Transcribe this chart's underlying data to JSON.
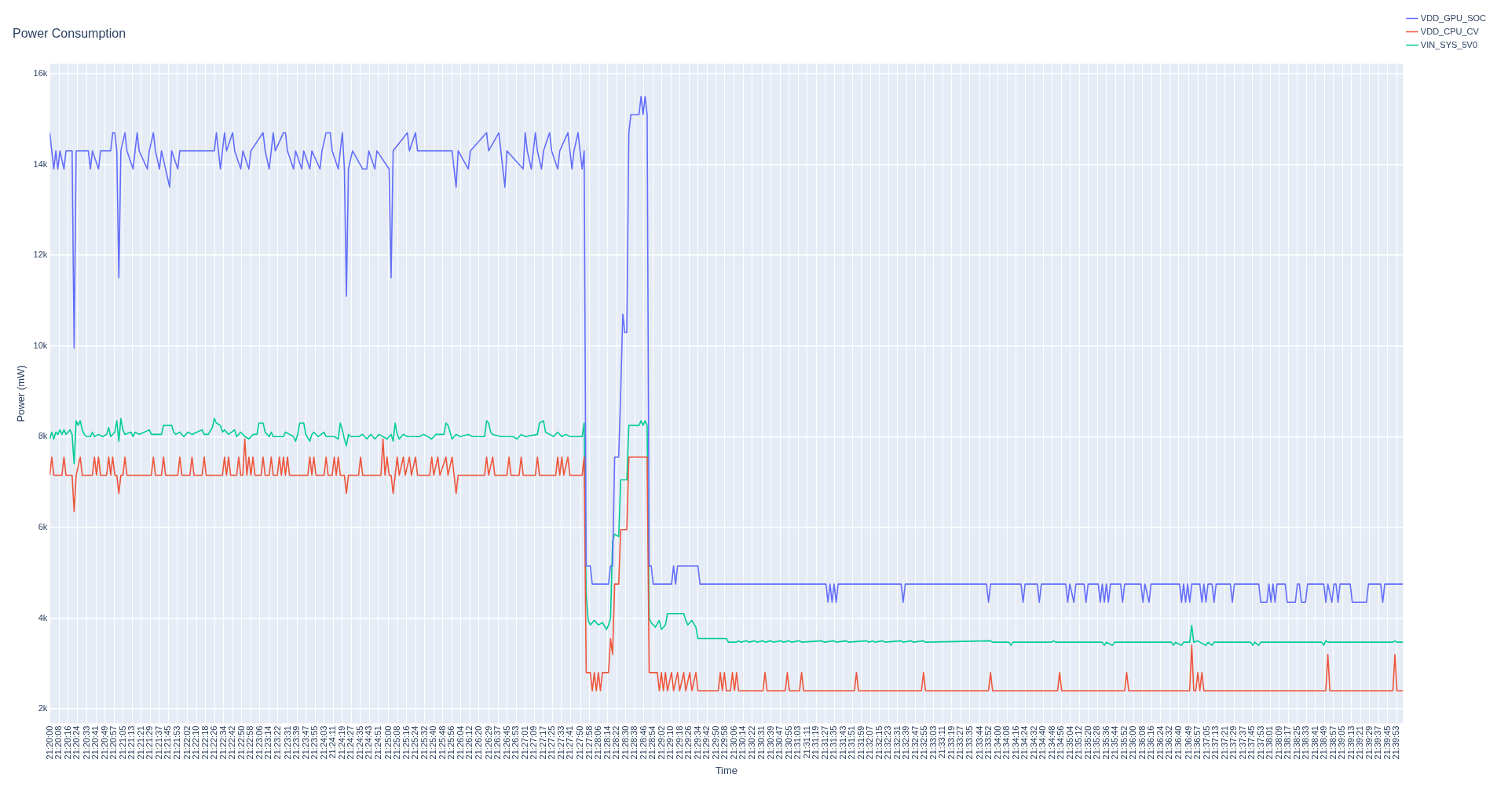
{
  "chart_data": {
    "type": "line",
    "title": "Power Consumption",
    "xlabel": "Time",
    "ylabel": "Power (mW)",
    "grid": true,
    "legend": "top right",
    "xlim": [
      21.3333,
      21.6663
    ],
    "ylim": [
      1680,
      16220
    ],
    "yticks": [
      {
        "value": 2000,
        "label": "2k"
      },
      {
        "value": 4000,
        "label": "4k"
      },
      {
        "value": 6000,
        "label": "6k"
      },
      {
        "value": 8000,
        "label": "8k"
      },
      {
        "value": 10000,
        "label": "10k"
      },
      {
        "value": 12000,
        "label": "12k"
      },
      {
        "value": 14000,
        "label": "14k"
      },
      {
        "value": 16000,
        "label": "16k"
      }
    ],
    "xticks": [
      {
        "value": 21.33333,
        "label": "21:20:00"
      },
      {
        "value": 21.33556,
        "label": "21:20:08"
      },
      {
        "value": 21.33778,
        "label": "21:20:16"
      },
      {
        "value": 21.34,
        "label": "21:20:24"
      },
      {
        "value": 21.3425,
        "label": "21:20:33"
      },
      {
        "value": 21.34472,
        "label": "21:20:41"
      },
      {
        "value": 21.34694,
        "label": "21:20:49"
      },
      {
        "value": 21.34917,
        "label": "21:20:57"
      },
      {
        "value": 21.35139,
        "label": "21:21:05"
      },
      {
        "value": 21.35361,
        "label": "21:21:13"
      },
      {
        "value": 21.35583,
        "label": "21:21:21"
      },
      {
        "value": 21.35806,
        "label": "21:21:29"
      },
      {
        "value": 21.36028,
        "label": "21:21:37"
      },
      {
        "value": 21.3625,
        "label": "21:21:45"
      },
      {
        "value": 21.36472,
        "label": "21:21:53"
      },
      {
        "value": 21.36722,
        "label": "21:22:02"
      },
      {
        "value": 21.36944,
        "label": "21:22:10"
      },
      {
        "value": 21.37167,
        "label": "21:22:18"
      },
      {
        "value": 21.37389,
        "label": "21:22:26"
      },
      {
        "value": 21.37611,
        "label": "21:22:34"
      },
      {
        "value": 21.37833,
        "label": "21:22:42"
      },
      {
        "value": 21.38056,
        "label": "21:22:50"
      },
      {
        "value": 21.38278,
        "label": "21:22:58"
      },
      {
        "value": 21.385,
        "label": "21:23:06"
      },
      {
        "value": 21.38722,
        "label": "21:23:14"
      },
      {
        "value": 21.38944,
        "label": "21:23:22"
      },
      {
        "value": 21.39194,
        "label": "21:23:31"
      },
      {
        "value": 21.39417,
        "label": "21:23:39"
      },
      {
        "value": 21.39639,
        "label": "21:23:47"
      },
      {
        "value": 21.39861,
        "label": "21:23:55"
      },
      {
        "value": 21.40083,
        "label": "21:24:03"
      },
      {
        "value": 21.40306,
        "label": "21:24:11"
      },
      {
        "value": 21.40528,
        "label": "21:24:19"
      },
      {
        "value": 21.4075,
        "label": "21:24:27"
      },
      {
        "value": 21.40972,
        "label": "21:24:35"
      },
      {
        "value": 21.41194,
        "label": "21:24:43"
      },
      {
        "value": 21.41417,
        "label": "21:24:51"
      },
      {
        "value": 21.41667,
        "label": "21:25:00"
      },
      {
        "value": 21.41889,
        "label": "21:25:08"
      },
      {
        "value": 21.42111,
        "label": "21:25:16"
      },
      {
        "value": 21.42333,
        "label": "21:25:24"
      },
      {
        "value": 21.42556,
        "label": "21:25:32"
      },
      {
        "value": 21.42778,
        "label": "21:25:40"
      },
      {
        "value": 21.43,
        "label": "21:25:48"
      },
      {
        "value": 21.43222,
        "label": "21:25:56"
      },
      {
        "value": 21.43444,
        "label": "21:26:04"
      },
      {
        "value": 21.43667,
        "label": "21:26:12"
      },
      {
        "value": 21.43889,
        "label": "21:26:20"
      },
      {
        "value": 21.44139,
        "label": "21:26:29"
      },
      {
        "value": 21.44361,
        "label": "21:26:37"
      },
      {
        "value": 21.44583,
        "label": "21:26:45"
      },
      {
        "value": 21.44806,
        "label": "21:26:53"
      },
      {
        "value": 21.45028,
        "label": "21:27:01"
      },
      {
        "value": 21.4525,
        "label": "21:27:09"
      },
      {
        "value": 21.45472,
        "label": "21:27:17"
      },
      {
        "value": 21.45694,
        "label": "21:27:25"
      },
      {
        "value": 21.45917,
        "label": "21:27:33"
      },
      {
        "value": 21.46139,
        "label": "21:27:41"
      },
      {
        "value": 21.46389,
        "label": "21:27:50"
      },
      {
        "value": 21.46611,
        "label": "21:27:58"
      },
      {
        "value": 21.46833,
        "label": "21:28:06"
      },
      {
        "value": 21.47056,
        "label": "21:28:14"
      },
      {
        "value": 21.47278,
        "label": "21:28:22"
      },
      {
        "value": 21.475,
        "label": "21:28:30"
      },
      {
        "value": 21.47722,
        "label": "21:28:38"
      },
      {
        "value": 21.47944,
        "label": "21:28:46"
      },
      {
        "value": 21.48167,
        "label": "21:28:54"
      },
      {
        "value": 21.48389,
        "label": "21:29:02"
      },
      {
        "value": 21.48611,
        "label": "21:29:10"
      },
      {
        "value": 21.48833,
        "label": "21:29:18"
      },
      {
        "value": 21.49056,
        "label": "21:29:26"
      },
      {
        "value": 21.49278,
        "label": "21:29:34"
      },
      {
        "value": 21.495,
        "label": "21:29:42"
      },
      {
        "value": 21.49722,
        "label": "21:29:50"
      },
      {
        "value": 21.49944,
        "label": "21:29:58"
      },
      {
        "value": 21.50167,
        "label": "21:30:06"
      },
      {
        "value": 21.50389,
        "label": "21:30:14"
      },
      {
        "value": 21.50611,
        "label": "21:30:22"
      },
      {
        "value": 21.50861,
        "label": "21:30:31"
      },
      {
        "value": 21.51083,
        "label": "21:30:39"
      },
      {
        "value": 21.51306,
        "label": "21:30:47"
      },
      {
        "value": 21.51528,
        "label": "21:30:55"
      },
      {
        "value": 21.5175,
        "label": "21:31:03"
      },
      {
        "value": 21.51972,
        "label": "21:31:11"
      },
      {
        "value": 21.52194,
        "label": "21:31:19"
      },
      {
        "value": 21.52417,
        "label": "21:31:27"
      },
      {
        "value": 21.52639,
        "label": "21:31:35"
      },
      {
        "value": 21.52861,
        "label": "21:31:43"
      },
      {
        "value": 21.53083,
        "label": "21:31:51"
      },
      {
        "value": 21.53306,
        "label": "21:31:59"
      },
      {
        "value": 21.53528,
        "label": "21:32:07"
      },
      {
        "value": 21.5375,
        "label": "21:32:15"
      },
      {
        "value": 21.53972,
        "label": "21:32:23"
      },
      {
        "value": 21.54194,
        "label": "21:32:31"
      },
      {
        "value": 21.54417,
        "label": "21:32:39"
      },
      {
        "value": 21.54639,
        "label": "21:32:47"
      },
      {
        "value": 21.54861,
        "label": "21:32:55"
      },
      {
        "value": 21.55083,
        "label": "21:33:03"
      },
      {
        "value": 21.55306,
        "label": "21:33:11"
      },
      {
        "value": 21.55528,
        "label": "21:33:19"
      },
      {
        "value": 21.5575,
        "label": "21:33:27"
      },
      {
        "value": 21.55972,
        "label": "21:33:35"
      },
      {
        "value": 21.56222,
        "label": "21:33:44"
      },
      {
        "value": 21.56444,
        "label": "21:33:52"
      },
      {
        "value": 21.56667,
        "label": "21:34:00"
      },
      {
        "value": 21.56889,
        "label": "21:34:08"
      },
      {
        "value": 21.57111,
        "label": "21:34:16"
      },
      {
        "value": 21.57333,
        "label": "21:34:24"
      },
      {
        "value": 21.57556,
        "label": "21:34:32"
      },
      {
        "value": 21.57778,
        "label": "21:34:40"
      },
      {
        "value": 21.58,
        "label": "21:34:48"
      },
      {
        "value": 21.58222,
        "label": "21:34:56"
      },
      {
        "value": 21.58444,
        "label": "21:35:04"
      },
      {
        "value": 21.58667,
        "label": "21:35:12"
      },
      {
        "value": 21.58889,
        "label": "21:35:20"
      },
      {
        "value": 21.59111,
        "label": "21:35:28"
      },
      {
        "value": 21.59333,
        "label": "21:35:36"
      },
      {
        "value": 21.59556,
        "label": "21:35:44"
      },
      {
        "value": 21.59778,
        "label": "21:35:52"
      },
      {
        "value": 21.6,
        "label": "21:36:00"
      },
      {
        "value": 21.60222,
        "label": "21:36:08"
      },
      {
        "value": 21.60444,
        "label": "21:36:16"
      },
      {
        "value": 21.60667,
        "label": "21:36:24"
      },
      {
        "value": 21.60889,
        "label": "21:36:32"
      },
      {
        "value": 21.61111,
        "label": "21:36:40"
      },
      {
        "value": 21.61361,
        "label": "21:36:49"
      },
      {
        "value": 21.61583,
        "label": "21:36:57"
      },
      {
        "value": 21.61806,
        "label": "21:37:05"
      },
      {
        "value": 21.62028,
        "label": "21:37:13"
      },
      {
        "value": 21.6225,
        "label": "21:37:21"
      },
      {
        "value": 21.62472,
        "label": "21:37:29"
      },
      {
        "value": 21.62694,
        "label": "21:37:37"
      },
      {
        "value": 21.62917,
        "label": "21:37:45"
      },
      {
        "value": 21.63139,
        "label": "21:37:53"
      },
      {
        "value": 21.63361,
        "label": "21:38:01"
      },
      {
        "value": 21.63583,
        "label": "21:38:09"
      },
      {
        "value": 21.63806,
        "label": "21:38:17"
      },
      {
        "value": 21.64028,
        "label": "21:38:25"
      },
      {
        "value": 21.6425,
        "label": "21:38:33"
      },
      {
        "value": 21.64472,
        "label": "21:38:41"
      },
      {
        "value": 21.64694,
        "label": "21:38:49"
      },
      {
        "value": 21.64917,
        "label": "21:38:57"
      },
      {
        "value": 21.65139,
        "label": "21:39:05"
      },
      {
        "value": 21.65361,
        "label": "21:39:13"
      },
      {
        "value": 21.65583,
        "label": "21:39:21"
      },
      {
        "value": 21.65806,
        "label": "21:39:29"
      },
      {
        "value": 21.66028,
        "label": "21:39:37"
      },
      {
        "value": 21.6625,
        "label": "21:39:45"
      },
      {
        "value": 21.66472,
        "label": "21:39:53"
      }
    ],
    "series": [
      {
        "name": "VDD_GPU_SOC",
        "color": "#636efa",
        "x": [
          21.3333,
          21.3338,
          21.3343,
          21.3348,
          21.3353,
          21.3358,
          21.3368,
          21.3373,
          21.3388,
          21.3393,
          21.3398,
          21.3428,
          21.3433,
          21.3438,
          21.3453,
          21.3458,
          21.3483,
          21.3488,
          21.3493,
          21.3498,
          21.3503,
          21.3508,
          21.3518,
          21.3523,
          21.3538,
          21.3543,
          21.3548,
          21.3553,
          21.3573,
          21.3578,
          21.3588,
          21.3593,
          21.3603,
          21.3608,
          21.3628,
          21.3633,
          21.3648,
          21.3653,
          21.3738,
          21.3743,
          21.3748,
          21.3753,
          21.3758,
          21.3763,
          21.3768,
          21.3783,
          21.3788,
          21.3803,
          21.3808,
          21.3823,
          21.3828,
          21.3858,
          21.3863,
          21.3873,
          21.3878,
          21.3883,
          21.3888,
          21.3908,
          21.3913,
          21.3918,
          21.3933,
          21.3938,
          21.3953,
          21.3958,
          21.3973,
          21.3978,
          21.3998,
          21.4003,
          21.4013,
          21.4023,
          21.4028,
          21.4043,
          21.4048,
          21.4053,
          21.4058,
          21.4063,
          21.4068,
          21.4078,
          21.4103,
          21.4113,
          21.4118,
          21.4133,
          21.4138,
          21.4168,
          21.4173,
          21.4178,
          21.4213,
          21.4218,
          21.4233,
          21.4238,
          21.4323,
          21.4328,
          21.4333,
          21.4338,
          21.4363,
          21.4368,
          21.4408,
          21.4413,
          21.4438,
          21.4443,
          21.4453,
          21.4458,
          21.4498,
          21.4503,
          21.4508,
          21.4518,
          21.4523,
          21.4528,
          21.4533,
          21.4543,
          21.4548,
          21.4563,
          21.4568,
          21.4583,
          21.4588,
          21.4608,
          21.4613,
          21.4618,
          21.4623,
          21.4633,
          21.4638,
          21.4643,
          21.4648,
          21.4653,
          21.4663,
          21.4668,
          21.4708,
          21.4713,
          21.4718,
          21.4723,
          21.4733,
          21.4738,
          21.4743,
          21.4748,
          21.4753,
          21.4758,
          21.4763,
          21.4783,
          21.4788,
          21.4793,
          21.4798,
          21.4803,
          21.4808,
          21.4813,
          21.4818,
          21.4863,
          21.4868,
          21.4873,
          21.4878,
          21.4928,
          21.4933,
          21.5243,
          21.5248,
          21.5253,
          21.5258,
          21.5263,
          21.5268,
          21.5273,
          21.5428,
          21.5433,
          21.5438,
          21.5638,
          21.5643,
          21.5648,
          21.5723,
          21.5728,
          21.5733,
          21.5763,
          21.5768,
          21.5773,
          21.5833,
          21.5838,
          21.5843,
          21.5853,
          21.5858,
          21.5878,
          21.5883,
          21.5888,
          21.5913,
          21.5918,
          21.5923,
          21.5928,
          21.5933,
          21.5938,
          21.5943,
          21.5968,
          21.5973,
          21.5978,
          21.6018,
          21.6023,
          21.6028,
          21.6038,
          21.6043,
          21.6113,
          21.6118,
          21.6123,
          21.6128,
          21.6133,
          21.6138,
          21.6143,
          21.6163,
          21.6168,
          21.6173,
          21.6178,
          21.6183,
          21.6193,
          21.6198,
          21.6203,
          21.6238,
          21.6243,
          21.6248,
          21.6308,
          21.6313,
          21.6328,
          21.6333,
          21.6338,
          21.6343,
          21.6348,
          21.6353,
          21.6373,
          21.6378,
          21.6398,
          21.6403,
          21.6408,
          21.6413,
          21.6423,
          21.6428,
          21.6468,
          21.6473,
          21.6478,
          21.6488,
          21.6493,
          21.6498,
          21.6503,
          21.6508,
          21.6533,
          21.6538,
          21.6573,
          21.6578,
          21.6608,
          21.6613,
          21.6618,
          21.6663
        ],
        "values": [
          14700,
          14300,
          13900,
          14300,
          13900,
          14300,
          13900,
          14300,
          14300,
          9950,
          14300,
          14300,
          13900,
          14300,
          13900,
          14300,
          14300,
          14700,
          14700,
          14300,
          11500,
          14300,
          14700,
          14300,
          13900,
          14300,
          14700,
          14300,
          13900,
          14300,
          14700,
          14300,
          13900,
          14300,
          13500,
          14300,
          13900,
          14300,
          14300,
          14700,
          14300,
          13900,
          14300,
          14700,
          14300,
          14700,
          14300,
          13900,
          14300,
          13900,
          14300,
          14700,
          14300,
          13900,
          14300,
          14700,
          14300,
          14700,
          14700,
          14300,
          13900,
          14300,
          13900,
          14300,
          13900,
          14300,
          13900,
          14300,
          14700,
          14700,
          14300,
          13900,
          14300,
          14700,
          13900,
          11100,
          13900,
          14300,
          13900,
          13900,
          14300,
          13900,
          14300,
          13900,
          11500,
          14300,
          14700,
          14300,
          14700,
          14300,
          14300,
          13900,
          13500,
          14300,
          13900,
          14300,
          14700,
          14300,
          14700,
          14300,
          13500,
          14300,
          13900,
          14700,
          14300,
          13900,
          14300,
          14700,
          14300,
          13900,
          14300,
          14700,
          14300,
          13900,
          14300,
          14700,
          14300,
          13900,
          14300,
          14700,
          14300,
          13900,
          14300,
          5150,
          5150,
          4750,
          4750,
          5150,
          5150,
          7550,
          7550,
          9000,
          10700,
          10300,
          10300,
          14700,
          15100,
          15100,
          15500,
          15100,
          15500,
          15100,
          5150,
          5150,
          4750,
          4750,
          5150,
          4750,
          5150,
          5150,
          4750,
          4750,
          4350,
          4750,
          4350,
          4750,
          4350,
          4750,
          4750,
          4350,
          4750,
          4750,
          4350,
          4750,
          4750,
          4350,
          4750,
          4750,
          4350,
          4750,
          4750,
          4350,
          4750,
          4350,
          4750,
          4750,
          4350,
          4750,
          4750,
          4350,
          4750,
          4350,
          4750,
          4350,
          4750,
          4750,
          4350,
          4750,
          4750,
          4350,
          4750,
          4350,
          4750,
          4750,
          4350,
          4750,
          4350,
          4750,
          4350,
          4750,
          4750,
          4350,
          4750,
          4350,
          4750,
          4750,
          4350,
          4750,
          4750,
          4350,
          4750,
          4750,
          4350,
          4350,
          4750,
          4350,
          4750,
          4350,
          4750,
          4750,
          4350,
          4350,
          4750,
          4750,
          4350,
          4350,
          4750,
          4750,
          4350,
          4750,
          4350,
          4750,
          4750,
          4350,
          4750,
          4750,
          4350,
          4350,
          4750,
          4750,
          4350,
          4750,
          4750
        ]
      },
      {
        "name": "VDD_CPU_CV",
        "color": "#ef553b",
        "x": [
          21.3333,
          21.3338,
          21.3343,
          21.3363,
          21.3368,
          21.3373,
          21.3388,
          21.3393,
          21.3398,
          21.3408,
          21.3413,
          21.3438,
          21.3443,
          21.3448,
          21.3453,
          21.3458,
          21.3473,
          21.3478,
          21.3483,
          21.3488,
          21.3493,
          21.3498,
          21.3503,
          21.3508,
          21.3513,
          21.3518,
          21.3523,
          21.3583,
          21.3588,
          21.3593,
          21.3608,
          21.3613,
          21.3618,
          21.3648,
          21.3653,
          21.3658,
          21.3678,
          21.3683,
          21.3688,
          21.3708,
          21.3713,
          21.3718,
          21.3758,
          21.3763,
          21.3768,
          21.3773,
          21.3778,
          21.3793,
          21.3798,
          21.3803,
          21.3808,
          21.3813,
          21.3818,
          21.3823,
          21.3828,
          21.3833,
          21.3838,
          21.3853,
          21.3858,
          21.3863,
          21.3873,
          21.3878,
          21.3883,
          21.3893,
          21.3898,
          21.3903,
          21.3908,
          21.3913,
          21.3918,
          21.3923,
          21.3968,
          21.3973,
          21.3978,
          21.3983,
          21.3988,
          21.4008,
          21.4013,
          21.4018,
          21.4028,
          21.4033,
          21.4038,
          21.4043,
          21.4048,
          21.4058,
          21.4063,
          21.4068,
          21.4093,
          21.4098,
          21.4103,
          21.4148,
          21.4153,
          21.4158,
          21.4163,
          21.4168,
          21.4173,
          21.4178,
          21.4183,
          21.4188,
          21.4193,
          21.4203,
          21.4208,
          21.4218,
          21.4223,
          21.4233,
          21.4238,
          21.4268,
          21.4273,
          21.4278,
          21.4288,
          21.4293,
          21.4308,
          21.4313,
          21.4323,
          21.4328,
          21.4333,
          21.4338,
          21.4403,
          21.4408,
          21.4413,
          21.4423,
          21.4428,
          21.4458,
          21.4463,
          21.4468,
          21.4488,
          21.4493,
          21.4498,
          21.4528,
          21.4533,
          21.4538,
          21.4578,
          21.4583,
          21.4588,
          21.4593,
          21.4598,
          21.4608,
          21.4613,
          21.4643,
          21.4648,
          21.4653,
          21.4663,
          21.4668,
          21.4673,
          21.4678,
          21.4683,
          21.4688,
          21.4693,
          21.4708,
          21.4713,
          21.4718,
          21.4723,
          21.4733,
          21.4738,
          21.4753,
          21.4758,
          21.4803,
          21.4808,
          21.4828,
          21.4833,
          21.4838,
          21.4843,
          21.4848,
          21.4853,
          21.4863,
          21.4868,
          21.4878,
          21.4883,
          21.4893,
          21.4898,
          21.4908,
          21.4913,
          21.4923,
          21.4928,
          21.4978,
          21.4983,
          21.4988,
          21.4993,
          21.4998,
          21.5008,
          21.5013,
          21.5018,
          21.5023,
          21.5028,
          21.5088,
          21.5093,
          21.5098,
          21.5143,
          21.5148,
          21.5153,
          21.5178,
          21.5183,
          21.5188,
          21.5313,
          21.5318,
          21.5323,
          21.5478,
          21.5483,
          21.5488,
          21.5643,
          21.5648,
          21.5653,
          21.5813,
          21.5818,
          21.5823,
          21.5978,
          21.5983,
          21.5988,
          21.6138,
          21.6143,
          21.6148,
          21.6153,
          21.6158,
          21.6163,
          21.6168,
          21.6173,
          21.6473,
          21.6478,
          21.6483,
          21.6638,
          21.6643,
          21.6648,
          21.6663
        ],
        "values": [
          7150,
          7550,
          7150,
          7150,
          7550,
          7150,
          7150,
          6350,
          7150,
          7550,
          7150,
          7150,
          7550,
          7150,
          7550,
          7150,
          7150,
          7550,
          7150,
          7550,
          7150,
          7150,
          6750,
          7150,
          7150,
          7550,
          7150,
          7150,
          7550,
          7150,
          7150,
          7550,
          7150,
          7150,
          7550,
          7150,
          7150,
          7550,
          7150,
          7150,
          7550,
          7150,
          7150,
          7550,
          7150,
          7550,
          7150,
          7150,
          7550,
          7150,
          7150,
          7950,
          7150,
          7550,
          7150,
          7550,
          7150,
          7150,
          7550,
          7150,
          7150,
          7550,
          7150,
          7150,
          7550,
          7150,
          7550,
          7150,
          7550,
          7150,
          7150,
          7550,
          7150,
          7550,
          7150,
          7150,
          7550,
          7150,
          7150,
          7550,
          7150,
          7550,
          7150,
          7150,
          6750,
          7150,
          7150,
          7550,
          7150,
          7150,
          7950,
          7150,
          7550,
          7150,
          7150,
          6750,
          7150,
          7550,
          7150,
          7550,
          7150,
          7550,
          7150,
          7550,
          7150,
          7150,
          7550,
          7150,
          7550,
          7150,
          7550,
          7150,
          7550,
          7150,
          6750,
          7150,
          7150,
          7550,
          7150,
          7550,
          7150,
          7150,
          7550,
          7150,
          7150,
          7550,
          7150,
          7150,
          7550,
          7150,
          7150,
          7550,
          7150,
          7550,
          7150,
          7550,
          7150,
          7150,
          7550,
          2800,
          2800,
          2400,
          2800,
          2400,
          2800,
          2400,
          2800,
          2800,
          3550,
          3200,
          4750,
          4750,
          5950,
          5950,
          7550,
          7550,
          2800,
          2800,
          2400,
          2800,
          2400,
          2800,
          2400,
          2800,
          2400,
          2800,
          2400,
          2800,
          2400,
          2800,
          2400,
          2800,
          2400,
          2400,
          2800,
          2400,
          2800,
          2400,
          2400,
          2800,
          2400,
          2800,
          2400,
          2400,
          2800,
          2400,
          2400,
          2800,
          2400,
          2400,
          2800,
          2400,
          2400,
          2800,
          2400,
          2400,
          2800,
          2400,
          2400,
          2800,
          2400,
          2400,
          2800,
          2400,
          2400,
          2800,
          2400,
          2400,
          3400,
          2400,
          2400,
          2800,
          2400,
          2800,
          2400,
          2400,
          3200,
          2400,
          2400,
          3200,
          2400,
          2400
        ]
      },
      {
        "name": "VIN_SYS_5V0",
        "color": "#00cc96",
        "x": [
          21.3333,
          21.3338,
          21.3343,
          21.3348,
          21.3353,
          21.3358,
          21.3363,
          21.3368,
          21.3373,
          21.3383,
          21.3388,
          21.3393,
          21.3398,
          21.3403,
          21.3408,
          21.3413,
          21.3418,
          21.3423,
          21.3433,
          21.3438,
          21.3443,
          21.3453,
          21.3463,
          21.3473,
          21.3478,
          21.3483,
          21.3493,
          21.3498,
          21.3503,
          21.3508,
          21.3513,
          21.3518,
          21.3533,
          21.3538,
          21.3543,
          21.3553,
          21.3578,
          21.3583,
          21.3608,
          21.3613,
          21.3633,
          21.3638,
          21.3643,
          21.3653,
          21.3663,
          21.3673,
          21.3683,
          21.3708,
          21.3713,
          21.3723,
          21.3733,
          21.3738,
          21.3743,
          21.3753,
          21.3758,
          21.3763,
          21.3773,
          21.3788,
          21.3793,
          21.3803,
          21.3813,
          21.3823,
          21.3833,
          21.3843,
          21.3848,
          21.3858,
          21.3863,
          21.3873,
          21.3878,
          21.3883,
          21.3908,
          21.3913,
          21.3923,
          21.3933,
          21.3938,
          21.3943,
          21.3948,
          21.3958,
          21.3963,
          21.3973,
          21.3978,
          21.3983,
          21.3993,
          21.4008,
          21.4013,
          21.4033,
          21.4043,
          21.4048,
          21.4053,
          21.4058,
          21.4063,
          21.4068,
          21.4073,
          21.4093,
          21.4103,
          21.4113,
          21.4123,
          21.4133,
          21.4143,
          21.4163,
          21.4173,
          21.4178,
          21.4183,
          21.4188,
          21.4193,
          21.4203,
          21.4213,
          21.4243,
          21.4253,
          21.4273,
          21.4283,
          21.4303,
          21.4308,
          21.4313,
          21.4318,
          21.4323,
          21.4333,
          21.4343,
          21.4363,
          21.4373,
          21.4403,
          21.4408,
          21.4413,
          21.4418,
          21.4423,
          21.4443,
          21.4473,
          21.4483,
          21.4493,
          21.4503,
          21.4533,
          21.4538,
          21.4548,
          21.4553,
          21.4563,
          21.4573,
          21.4583,
          21.4593,
          21.4603,
          21.4613,
          21.4643,
          21.4648,
          21.4653,
          21.4658,
          21.4663,
          21.4673,
          21.4683,
          21.4693,
          21.4703,
          21.4708,
          21.4713,
          21.4718,
          21.4723,
          21.4733,
          21.4738,
          21.4753,
          21.4758,
          21.4783,
          21.4788,
          21.4793,
          21.4798,
          21.4803,
          21.4808,
          21.4813,
          21.4823,
          21.4833,
          21.4838,
          21.4848,
          21.4853,
          21.4893,
          21.4898,
          21.4903,
          21.4913,
          21.4923,
          21.4928,
          21.4998,
          21.5003,
          21.5023,
          21.5028,
          21.5033,
          21.5048,
          21.5053,
          21.5068,
          21.5073,
          21.5088,
          21.5093,
          21.5108,
          21.5113,
          21.5133,
          21.5138,
          21.5153,
          21.5158,
          21.5178,
          21.5183,
          21.5233,
          21.5238,
          21.5263,
          21.5268,
          21.5293,
          21.5298,
          21.5343,
          21.5348,
          21.5358,
          21.5363,
          21.5383,
          21.5388,
          21.5428,
          21.5433,
          21.5453,
          21.5458,
          21.5483,
          21.5488,
          21.5648,
          21.5653,
          21.5693,
          21.5698,
          21.5703,
          21.5798,
          21.5803,
          21.5808,
          21.5923,
          21.5928,
          21.5933,
          21.5948,
          21.5953,
          21.6093,
          21.6098,
          21.6103,
          21.6118,
          21.6123,
          21.6138,
          21.6143,
          21.6148,
          21.6158,
          21.6163,
          21.6178,
          21.6183,
          21.6193,
          21.6198,
          21.6288,
          21.6293,
          21.6298,
          21.6308,
          21.6313,
          21.6463,
          21.6468,
          21.6473,
          21.6478,
          21.6638,
          21.6643,
          21.6648,
          21.6663
        ],
        "values": [
          7950,
          8100,
          7950,
          8100,
          8050,
          8150,
          8050,
          8150,
          8050,
          8150,
          8050,
          7400,
          8350,
          8250,
          8350,
          8150,
          8050,
          8000,
          8000,
          8100,
          8000,
          8050,
          8000,
          8050,
          8200,
          8000,
          8100,
          8350,
          7900,
          8400,
          8150,
          8050,
          8100,
          8000,
          8100,
          8050,
          8150,
          8050,
          8050,
          8250,
          8250,
          8100,
          8050,
          8100,
          8000,
          8100,
          8050,
          8150,
          8050,
          8050,
          8200,
          8400,
          8300,
          8250,
          8100,
          8150,
          8050,
          8150,
          8000,
          8100,
          8000,
          7950,
          8050,
          8050,
          8300,
          8300,
          8100,
          8000,
          8100,
          8000,
          8000,
          8100,
          8050,
          8000,
          7900,
          8050,
          8300,
          8300,
          8050,
          7900,
          8050,
          8100,
          8000,
          8100,
          8000,
          8000,
          7950,
          8300,
          8150,
          7950,
          7800,
          8050,
          8000,
          8000,
          8050,
          7950,
          8050,
          7950,
          8050,
          7950,
          8050,
          7900,
          8300,
          8050,
          7950,
          8050,
          8000,
          8000,
          8050,
          7950,
          8050,
          8050,
          8300,
          8250,
          8100,
          7950,
          8050,
          8000,
          8050,
          8000,
          8000,
          8350,
          8300,
          8100,
          8050,
          8000,
          8000,
          7950,
          8050,
          8000,
          8050,
          8300,
          8350,
          8100,
          8050,
          8000,
          8100,
          8000,
          8050,
          8000,
          8000,
          8300,
          4500,
          3950,
          3850,
          3950,
          3850,
          3900,
          3750,
          3850,
          4000,
          5700,
          5850,
          5800,
          7050,
          7050,
          8250,
          8250,
          8350,
          8250,
          8350,
          8250,
          4000,
          3900,
          3800,
          3950,
          3750,
          3850,
          4100,
          4100,
          3950,
          3850,
          3950,
          3800,
          3550,
          3550,
          3470,
          3470,
          3500,
          3470,
          3500,
          3470,
          3500,
          3470,
          3500,
          3470,
          3500,
          3470,
          3500,
          3470,
          3500,
          3470,
          3500,
          3470,
          3500,
          3470,
          3500,
          3470,
          3500,
          3470,
          3500,
          3470,
          3500,
          3470,
          3500,
          3470,
          3500,
          3470,
          3500,
          3470,
          3500,
          3470,
          3500,
          3470,
          3470,
          3400,
          3470,
          3470,
          3500,
          3470,
          3470,
          3400,
          3470,
          3400,
          3470,
          3470,
          3400,
          3470,
          3400,
          3470,
          3470,
          3840,
          3470,
          3500,
          3470,
          3400,
          3470,
          3400,
          3470,
          3470,
          3400,
          3470,
          3400,
          3470,
          3470,
          3400,
          3500,
          3470,
          3470,
          3500,
          3470,
          3470
        ]
      }
    ]
  }
}
